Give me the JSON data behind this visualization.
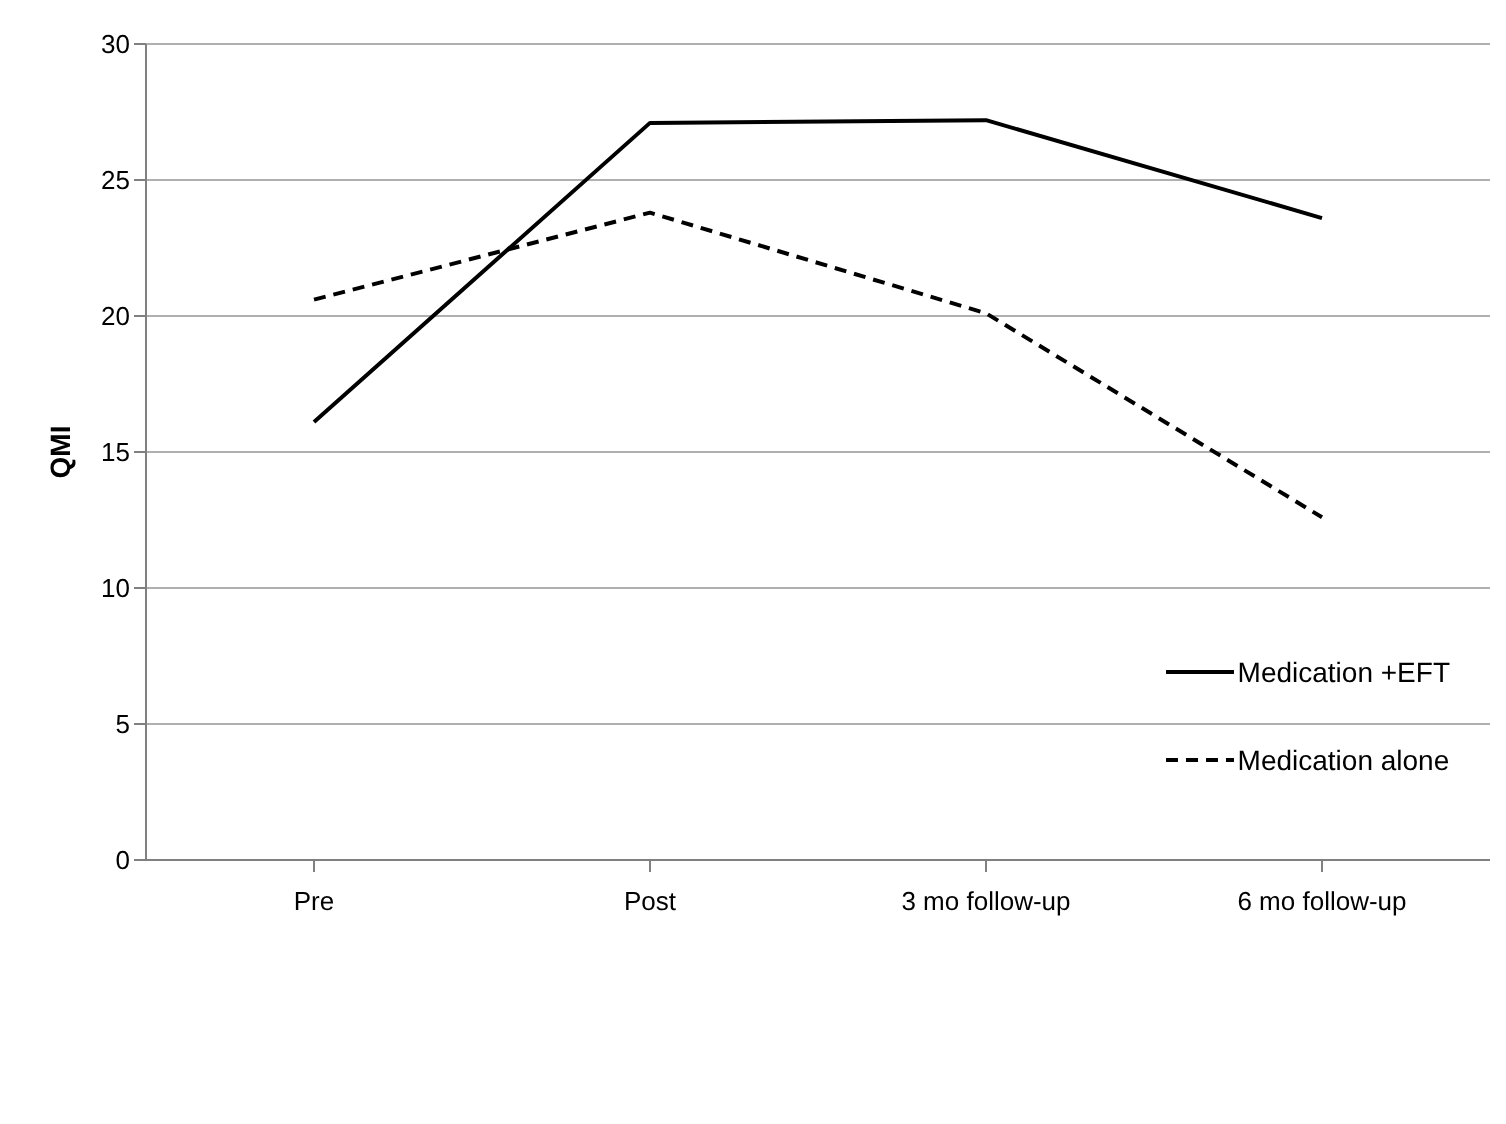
{
  "chart_data": {
    "type": "line",
    "ylabel": "QMI",
    "categories": [
      "Pre",
      "Post",
      "3 mo follow-up",
      "6 mo follow-up"
    ],
    "series": [
      {
        "name": "Medication +EFT",
        "color": "#000000",
        "line_style": "solid",
        "values": [
          16.1,
          27.1,
          27.2,
          23.6
        ]
      },
      {
        "name": "Medication alone",
        "color": "#000000",
        "line_style": "dashed",
        "values": [
          20.6,
          23.8,
          20.1,
          12.6
        ]
      }
    ],
    "ylim": [
      0,
      30
    ],
    "yticks": [
      0,
      5,
      10,
      15,
      20,
      25,
      30
    ],
    "grid": "y",
    "legend": "right",
    "marker": "none"
  }
}
